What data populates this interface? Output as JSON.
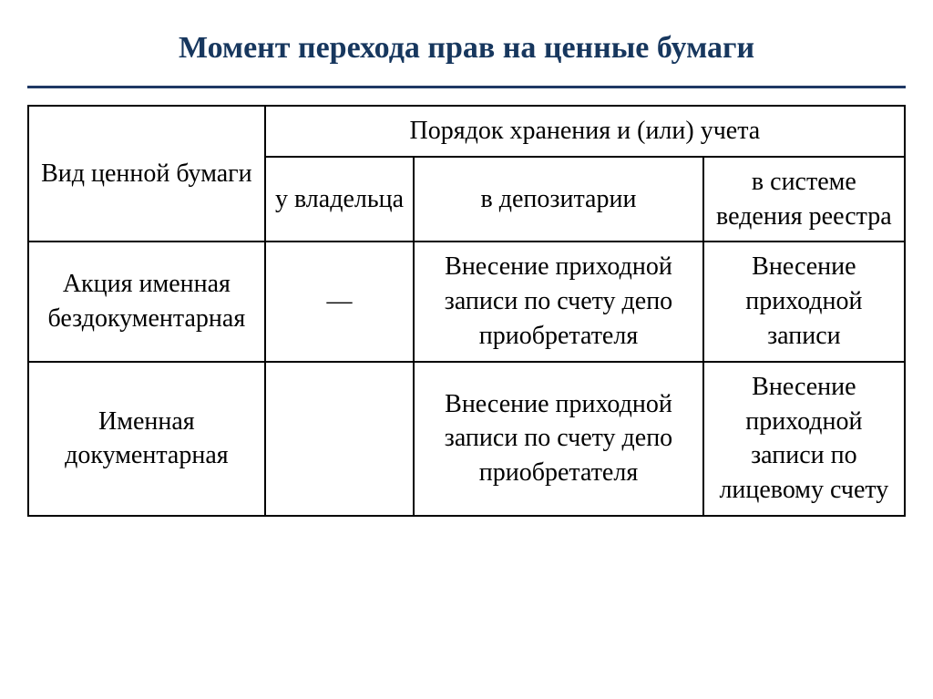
{
  "title": "Момент перехода прав на ценные бумаги",
  "colors": {
    "title_text": "#17375e",
    "title_underline": "#1f3864",
    "border": "#000000",
    "background": "#ffffff",
    "cell_text": "#000000"
  },
  "typography": {
    "title_fontsize": 34,
    "title_fontweight": "bold",
    "cell_fontsize": 28,
    "font_family": "Times New Roman"
  },
  "table": {
    "type": "table",
    "column_widths_pct": [
      27,
      17,
      33,
      23
    ],
    "header": {
      "row_span_label": "Вид ценной бумаги",
      "group_label": "Порядок хранения и (или) учета",
      "subheaders": [
        "у владельца",
        "в депозитарии",
        "в системе ведения реестра"
      ]
    },
    "rows": [
      {
        "label": "Акция  именная бездокументарная",
        "cells": [
          "—",
          "Внесение приходной записи по счету депо приобретателя",
          "Внесение приходной записи"
        ]
      },
      {
        "label": "Именная документарная",
        "cells": [
          "",
          "Внесение приходной записи по счету депо приобретателя",
          "Внесение приходной записи по лицевому счету"
        ]
      }
    ]
  }
}
